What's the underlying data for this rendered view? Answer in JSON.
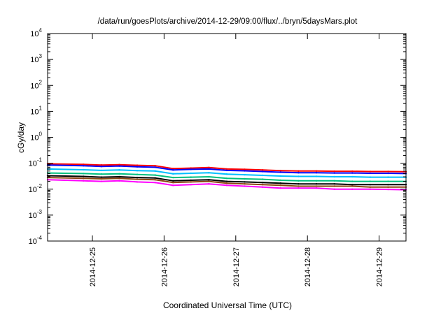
{
  "chart_data": {
    "type": "line",
    "title": "/data/run/goesPlots/archive/2014-12-29/09:00/flux/../bryn/5daysMars.plot",
    "xlabel": "Coordinated Universal Time (UTC)",
    "ylabel": "cGy/day",
    "x_scale": "time",
    "y_scale": "log",
    "xlim": [
      "2014-12-24T09:00",
      "2014-12-29T09:00"
    ],
    "ylim": [
      0.0001,
      10000
    ],
    "grid": false,
    "x_ticks": [
      "2014-12-25",
      "2014-12-26",
      "2014-12-27",
      "2014-12-28",
      "2014-12-29"
    ],
    "y_ticks": [
      {
        "value": 0.0001,
        "base": "10",
        "exp": "-4"
      },
      {
        "value": 0.001,
        "base": "10",
        "exp": "-3"
      },
      {
        "value": 0.01,
        "base": "10",
        "exp": "-2"
      },
      {
        "value": 0.1,
        "base": "10",
        "exp": "-1"
      },
      {
        "value": 1,
        "base": "10",
        "exp": "0"
      },
      {
        "value": 10,
        "base": "10",
        "exp": "1"
      },
      {
        "value": 100,
        "base": "10",
        "exp": "2"
      },
      {
        "value": 1000,
        "base": "10",
        "exp": "3"
      },
      {
        "value": 10000,
        "base": "10",
        "exp": "4"
      }
    ],
    "x": [
      "2014-12-24T09:00",
      "2014-12-24T21:00",
      "2014-12-25T03:00",
      "2014-12-25T09:00",
      "2014-12-25T15:00",
      "2014-12-25T21:00",
      "2014-12-26T03:00",
      "2014-12-26T09:00",
      "2014-12-26T15:00",
      "2014-12-26T21:00",
      "2014-12-27T03:00",
      "2014-12-27T09:00",
      "2014-12-27T15:00",
      "2014-12-27T21:00",
      "2014-12-28T03:00",
      "2014-12-28T09:00",
      "2014-12-28T15:00",
      "2014-12-28T21:00",
      "2014-12-29T03:00",
      "2014-12-29T09:00"
    ],
    "series": [
      {
        "color": "#ff0000",
        "values": [
          0.095,
          0.09,
          0.085,
          0.088,
          0.083,
          0.08,
          0.062,
          0.065,
          0.068,
          0.06,
          0.058,
          0.055,
          0.052,
          0.05,
          0.05,
          0.049,
          0.049,
          0.048,
          0.048,
          0.047
        ]
      },
      {
        "color": "#0000ff",
        "values": [
          0.085,
          0.08,
          0.075,
          0.078,
          0.073,
          0.07,
          0.055,
          0.058,
          0.06,
          0.053,
          0.051,
          0.048,
          0.045,
          0.043,
          0.043,
          0.042,
          0.042,
          0.041,
          0.041,
          0.04
        ]
      },
      {
        "color": "#00bfff",
        "values": [
          0.06,
          0.056,
          0.053,
          0.055,
          0.052,
          0.05,
          0.039,
          0.041,
          0.043,
          0.038,
          0.036,
          0.034,
          0.032,
          0.031,
          0.031,
          0.03,
          0.03,
          0.029,
          0.029,
          0.029
        ]
      },
      {
        "color": "#00c080",
        "values": [
          0.042,
          0.04,
          0.038,
          0.039,
          0.037,
          0.035,
          0.028,
          0.029,
          0.03,
          0.026,
          0.025,
          0.024,
          0.022,
          0.021,
          0.021,
          0.021,
          0.02,
          0.02,
          0.02,
          0.02
        ]
      },
      {
        "color": "#000000",
        "values": [
          0.033,
          0.031,
          0.029,
          0.03,
          0.028,
          0.027,
          0.021,
          0.022,
          0.023,
          0.02,
          0.019,
          0.018,
          0.017,
          0.016,
          0.016,
          0.016,
          0.015,
          0.015,
          0.015,
          0.015
        ]
      },
      {
        "color": "#8b4513",
        "values": [
          0.028,
          0.026,
          0.025,
          0.026,
          0.024,
          0.023,
          0.018,
          0.019,
          0.02,
          0.017,
          0.016,
          0.015,
          0.014,
          0.013,
          0.013,
          0.013,
          0.013,
          0.012,
          0.012,
          0.012
        ]
      },
      {
        "color": "#ff00ff",
        "values": [
          0.023,
          0.021,
          0.02,
          0.021,
          0.019,
          0.018,
          0.014,
          0.015,
          0.016,
          0.014,
          0.013,
          0.012,
          0.011,
          0.011,
          0.011,
          0.01,
          0.01,
          0.01,
          0.0098,
          0.0095
        ]
      }
    ]
  }
}
